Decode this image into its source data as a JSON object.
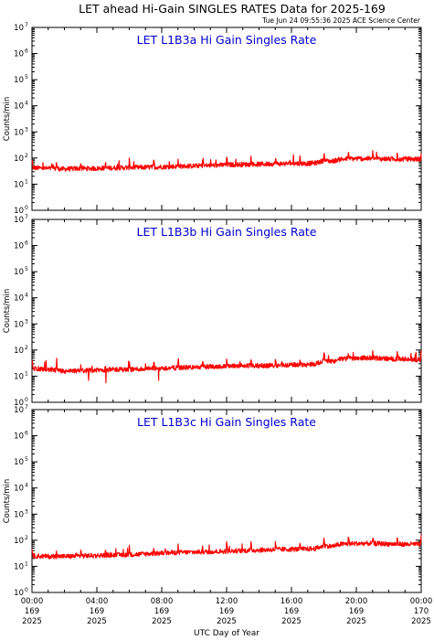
{
  "header": {
    "title": "LET ahead Hi-Gain SINGLES RATES Data for 2025-169",
    "timestamp": "Tue Jun 24 09:55:36 2025 ACE Science Center"
  },
  "colors": {
    "trace": "#ff0000",
    "panel_title": "#0000cc",
    "axes": "#000000"
  },
  "chart_data": [
    {
      "type": "line",
      "title": "LET L1B3a Hi Gain Singles Rate",
      "ylabel": "Counts/min",
      "xlabel": "",
      "y_scale": "log",
      "ylim": [
        1,
        10000000
      ],
      "xlim": [
        0,
        24
      ],
      "x_unit": "hours UTC (day 169)",
      "y_ticks": [
        {
          "base": "10",
          "exp": "0"
        },
        {
          "base": "10",
          "exp": "1"
        },
        {
          "base": "10",
          "exp": "2"
        },
        {
          "base": "10",
          "exp": "3"
        },
        {
          "base": "10",
          "exp": "4"
        },
        {
          "base": "10",
          "exp": "5"
        },
        {
          "base": "10",
          "exp": "6"
        },
        {
          "base": "10",
          "exp": "7"
        }
      ],
      "series": [
        {
          "x": [
            0,
            1,
            2,
            3,
            4,
            5,
            6,
            7,
            8,
            9,
            10,
            11,
            12,
            13,
            14,
            15,
            16,
            17,
            17.5,
            18,
            18.5,
            19,
            20,
            21,
            22,
            23,
            24
          ],
          "values": [
            42,
            40,
            38,
            40,
            40,
            42,
            43,
            44,
            46,
            48,
            50,
            52,
            55,
            57,
            58,
            60,
            62,
            62,
            65,
            80,
            75,
            90,
            95,
            95,
            92,
            90,
            92
          ]
        }
      ]
    },
    {
      "type": "line",
      "title": "LET L1B3b Hi Gain Singles Rate",
      "ylabel": "Counts/min",
      "xlabel": "",
      "y_scale": "log",
      "ylim": [
        1,
        10000000
      ],
      "xlim": [
        0,
        24
      ],
      "x_unit": "hours UTC (day 169)",
      "y_ticks": [
        {
          "base": "10",
          "exp": "0"
        },
        {
          "base": "10",
          "exp": "1"
        },
        {
          "base": "10",
          "exp": "2"
        },
        {
          "base": "10",
          "exp": "3"
        },
        {
          "base": "10",
          "exp": "4"
        },
        {
          "base": "10",
          "exp": "5"
        },
        {
          "base": "10",
          "exp": "6"
        },
        {
          "base": "10",
          "exp": "7"
        }
      ],
      "series": [
        {
          "x": [
            0,
            1,
            2,
            3,
            4,
            5,
            6,
            7,
            8,
            9,
            10,
            11,
            12,
            13,
            14,
            15,
            16,
            17,
            17.5,
            18,
            18.5,
            19,
            20,
            21,
            22,
            23,
            24
          ],
          "values": [
            20,
            18,
            15,
            16,
            17,
            18,
            18,
            19,
            20,
            21,
            22,
            23,
            24,
            25,
            25,
            26,
            27,
            28,
            30,
            40,
            36,
            45,
            50,
            50,
            46,
            44,
            42
          ]
        }
      ]
    },
    {
      "type": "line",
      "title": "LET L1B3c Hi Gain Singles Rate",
      "ylabel": "Counts/min",
      "xlabel": "UTC Day of Year",
      "y_scale": "log",
      "ylim": [
        1,
        10000000
      ],
      "xlim": [
        0,
        24
      ],
      "x_unit": "hours UTC (day 169)",
      "y_ticks": [
        {
          "base": "10",
          "exp": "0"
        },
        {
          "base": "10",
          "exp": "1"
        },
        {
          "base": "10",
          "exp": "2"
        },
        {
          "base": "10",
          "exp": "3"
        },
        {
          "base": "10",
          "exp": "4"
        },
        {
          "base": "10",
          "exp": "5"
        },
        {
          "base": "10",
          "exp": "6"
        },
        {
          "base": "10",
          "exp": "7"
        }
      ],
      "x_ticks": [
        {
          "time": "00:00",
          "doy": "169",
          "year": "2025"
        },
        {
          "time": "04:00",
          "doy": "169",
          "year": "2025"
        },
        {
          "time": "08:00",
          "doy": "169",
          "year": "2025"
        },
        {
          "time": "12:00",
          "doy": "169",
          "year": "2025"
        },
        {
          "time": "16:00",
          "doy": "169",
          "year": "2025"
        },
        {
          "time": "20:00",
          "doy": "169",
          "year": "2025"
        },
        {
          "time": "00:00",
          "doy": "170",
          "year": "2025"
        }
      ],
      "series": [
        {
          "x": [
            0,
            1,
            2,
            3,
            4,
            5,
            6,
            7,
            8,
            9,
            10,
            11,
            12,
            13,
            14,
            15,
            16,
            17,
            17.5,
            18,
            18.5,
            19,
            20,
            21,
            22,
            23,
            24
          ],
          "values": [
            25,
            24,
            24,
            25,
            26,
            27,
            28,
            30,
            32,
            34,
            35,
            36,
            38,
            40,
            42,
            44,
            45,
            46,
            48,
            62,
            58,
            70,
            75,
            75,
            72,
            70,
            70
          ]
        }
      ]
    }
  ]
}
